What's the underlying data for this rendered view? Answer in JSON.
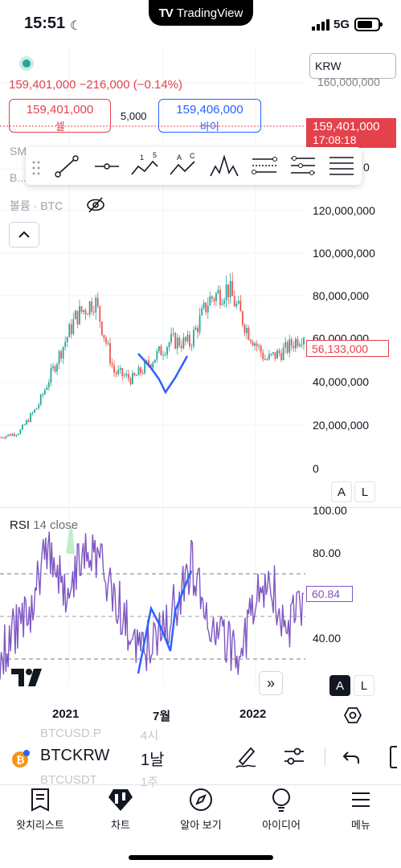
{
  "status_bar": {
    "time": "15:51",
    "network": "5G"
  },
  "app": {
    "name": "TradingView"
  },
  "header": {
    "price_line": "159,401,000 −216,000 (−0.14%)",
    "sell": {
      "price": "159,401,000",
      "label": "셀"
    },
    "spread": "5,000",
    "buy": {
      "price": "159,406,000",
      "label": "바이"
    },
    "currency": "KRW"
  },
  "legend": {
    "sma": "SM",
    "b": "B...",
    "volume": "볼륨 · BTC"
  },
  "price_axis": {
    "labels": [
      "140,000,000",
      "120,000,000",
      "100,000,000",
      "80,000,000",
      "60,000,000",
      "40,000,000",
      "20,000,000",
      "0"
    ],
    "top_clipped": "160,000,000",
    "current_price": "159,401,000",
    "countdown": "17:08:18",
    "last_price": "56,133,000"
  },
  "scale_buttons": {
    "auto": "A",
    "log": "L"
  },
  "rsi": {
    "title": "RSI",
    "params": "14 close",
    "axis": [
      "100.00",
      "80.00",
      "40.00"
    ],
    "value": "60.84"
  },
  "time_axis": {
    "labels": [
      "2021",
      "7월",
      "2022"
    ]
  },
  "symbol_bar": {
    "ghost_above": {
      "symbol": "BTCUSD.P",
      "interval": "4시"
    },
    "ghost_below": {
      "symbol": "BTCUSDT",
      "interval": "1주"
    },
    "symbol": "BTCKRW",
    "interval": "1날"
  },
  "bottom_nav": [
    {
      "label": "왓치리스트",
      "icon": "watchlist-icon"
    },
    {
      "label": "차트",
      "icon": "chart-icon"
    },
    {
      "label": "알아 보기",
      "icon": "compass-icon"
    },
    {
      "label": "아이디어",
      "icon": "lightbulb-icon"
    },
    {
      "label": "메뉴",
      "icon": "menu-icon"
    }
  ],
  "colors": {
    "up": "#26a69a",
    "down": "#ef5350",
    "rsi": "#7e57c2",
    "drawing": "#2962ff",
    "price_line": "#e5414b"
  },
  "chart_data": {
    "type": "candlestick",
    "series": [
      {
        "name": "BTCKRW",
        "x": [
          "2020-11",
          "2020-12",
          "2021-01",
          "2021-02",
          "2021-03",
          "2021-04",
          "2021-05",
          "2021-06",
          "2021-07",
          "2021-08",
          "2021-09",
          "2021-10",
          "2021-11",
          "2021-12",
          "2022-01",
          "2022-02",
          "2022-03"
        ],
        "close": [
          13000000,
          15000000,
          26000000,
          45000000,
          63000000,
          70000000,
          40000000,
          37000000,
          45000000,
          53000000,
          52000000,
          70000000,
          75000000,
          58000000,
          45000000,
          49000000,
          56133000
        ]
      }
    ],
    "rsi": {
      "upper": 70,
      "middle": 50,
      "lower": 30,
      "last": 60.84
    },
    "ylim": [
      0,
      160000000
    ]
  }
}
